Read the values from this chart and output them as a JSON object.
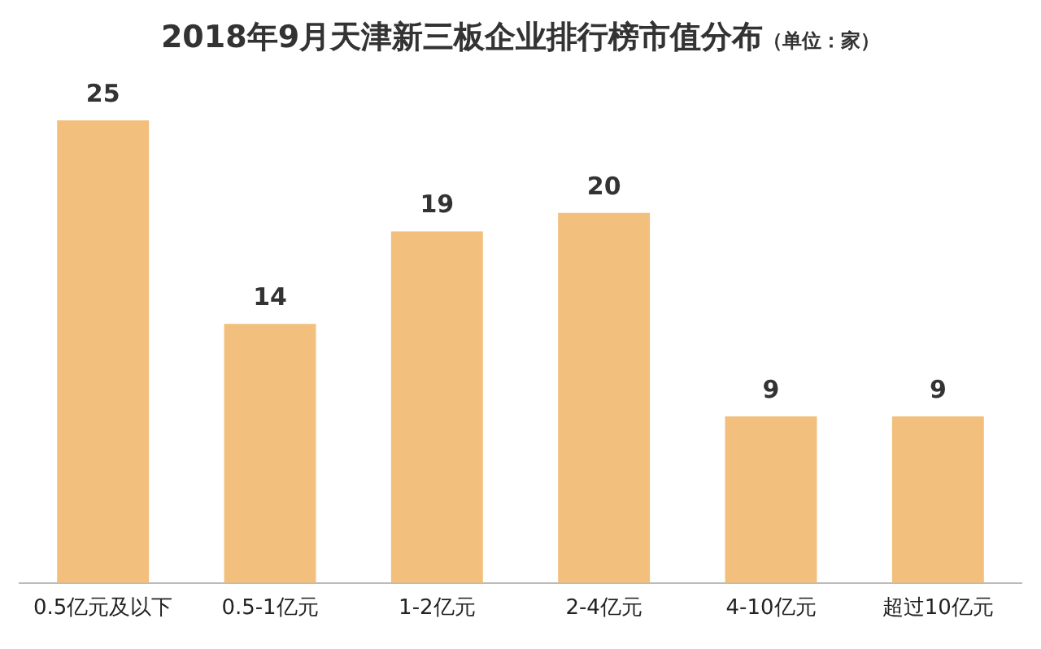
{
  "chart_data": {
    "type": "bar",
    "title": "2018年9月天津新三板企业排行榜市值分布",
    "subtitle": "（单位：家）",
    "categories": [
      "0.5亿元及以下",
      "0.5-1亿元",
      "1-2亿元",
      "2-4亿元",
      "4-10亿元",
      "超过10亿元"
    ],
    "values": [
      25,
      14,
      19,
      20,
      9,
      9
    ],
    "color": "#f2bf7c",
    "data_labels": true,
    "grid": false,
    "legend": false
  }
}
